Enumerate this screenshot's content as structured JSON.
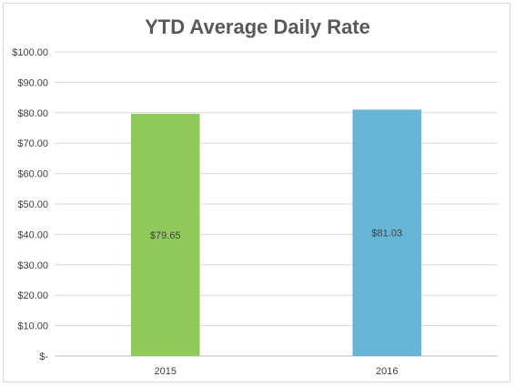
{
  "chart_data": {
    "type": "bar",
    "title": "YTD Average Daily Rate",
    "categories": [
      "2015",
      "2016"
    ],
    "values": [
      79.65,
      81.03
    ],
    "data_labels": [
      "$79.65",
      "$81.03"
    ],
    "bar_colors": [
      "#92c95c",
      "#67b5d6"
    ],
    "ylim": [
      0,
      100
    ],
    "yticks": [
      0,
      10,
      20,
      30,
      40,
      50,
      60,
      70,
      80,
      90,
      100
    ],
    "ytick_labels": [
      "$-",
      "$10.00",
      "$20.00",
      "$30.00",
      "$40.00",
      "$50.00",
      "$60.00",
      "$70.00",
      "$80.00",
      "$90.00",
      "$100.00"
    ],
    "xlabel": "",
    "ylabel": "",
    "grid": true,
    "legend": "none"
  }
}
